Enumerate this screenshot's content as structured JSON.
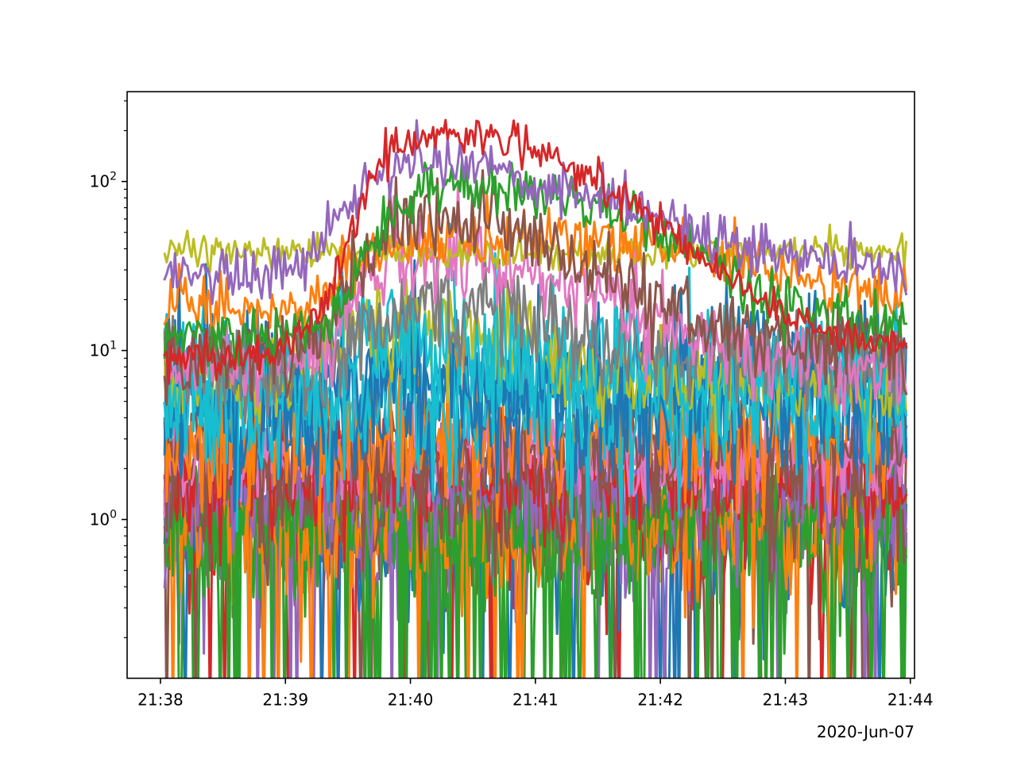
{
  "chart_data": {
    "type": "line",
    "title": "",
    "xlabel": "",
    "ylabel": "",
    "x_axis": {
      "kind": "time",
      "start": "21:38",
      "end": "21:44",
      "range": [
        "21:37:44",
        "21:44:02"
      ],
      "tick_labels": [
        "21:38",
        "21:39",
        "21:40",
        "21:41",
        "21:42",
        "21:43",
        "21:44"
      ],
      "offset_label": "2020-Jun-07"
    },
    "y_axis": {
      "scale": "log",
      "range": [
        0.115,
        340
      ],
      "tick_labels": [
        {
          "value": 1,
          "mantissa": "10",
          "exponent": "0"
        },
        {
          "value": 10,
          "mantissa": "10",
          "exponent": "1"
        },
        {
          "value": 100,
          "mantissa": "10",
          "exponent": "2"
        }
      ]
    },
    "grid": false,
    "legend": "none",
    "data_time_range": [
      "21:38:02",
      "21:43:58"
    ],
    "samples_per_series": 360,
    "series": [
      {
        "color": "#d62728",
        "profile": "bell",
        "base": 9,
        "peak": 225,
        "rise": "21:39:30",
        "fall": "21:42:10",
        "noise": 0.06
      },
      {
        "color": "#9467bd",
        "profile": "bell",
        "base": 28,
        "peak": 140,
        "rise": "21:39:25",
        "fall": "21:42:00",
        "noise": 0.08
      },
      {
        "color": "#2ca02c",
        "profile": "bell",
        "base": 12,
        "peak": 105,
        "rise": "21:39:40",
        "fall": "21:42:20",
        "noise": 0.08
      },
      {
        "color": "#8c564b",
        "profile": "bell",
        "base": 10,
        "peak": 85,
        "rise": "21:39:35",
        "fall": "21:41:30",
        "noise": 0.12
      },
      {
        "color": "#ff7f0e",
        "profile": "bell",
        "base": 18,
        "peak": 46,
        "rise": "21:39:30",
        "fall": "21:43:00",
        "noise": 0.09
      },
      {
        "color": "#bcbd22",
        "profile": "flat",
        "base": 38,
        "noise": 0.05
      },
      {
        "color": "#e377c2",
        "profile": "bell",
        "base": 8,
        "peak": 45,
        "rise": "21:39:30",
        "fall": "21:41:30",
        "noise": 0.12
      },
      {
        "color": "#7f7f7f",
        "profile": "bell",
        "base": 8,
        "peak": 24,
        "rise": "21:39:45",
        "fall": "21:41:15",
        "noise": 0.15
      },
      {
        "color": "#17becf",
        "profile": "bell",
        "base": 6,
        "peak": 14,
        "rise": "21:39:20",
        "fall": "21:41:00",
        "noise": 0.22
      },
      {
        "color": "#bcbd22",
        "profile": "bell",
        "base": 6,
        "peak": 20,
        "rise": "21:39:20",
        "fall": "21:40:40",
        "noise": 0.15
      },
      {
        "color": "#1f77b4",
        "profile": "flat",
        "base": 7,
        "noise": 0.25
      },
      {
        "color": "#17becf",
        "profile": "flat",
        "base": 5,
        "noise": 0.25
      },
      {
        "color": "#1f77b4",
        "profile": "flat",
        "base": 5,
        "noise": 0.25
      },
      {
        "color": "#ff7f0e",
        "profile": "flat",
        "base": 3.5,
        "noise": 0.25
      },
      {
        "color": "#8c564b",
        "profile": "flat",
        "base": 2.5,
        "noise": 0.18
      },
      {
        "color": "#e377c2",
        "profile": "flat",
        "base": 2.6,
        "noise": 0.12
      },
      {
        "color": "#e377c2",
        "profile": "flat",
        "base": 2.2,
        "noise": 0.12
      },
      {
        "color": "#d62728",
        "profile": "flat",
        "base": 1.8,
        "noise": 0.18
      },
      {
        "color": "#9467bd",
        "profile": "flat",
        "base": 1.6,
        "noise": 0.2
      },
      {
        "color": "#8c564b",
        "profile": "flat",
        "base": 1.5,
        "noise": 0.2
      },
      {
        "color": "#2ca02c",
        "profile": "flat",
        "base": 1.2,
        "noise": 0.22,
        "drops": 0.06
      },
      {
        "color": "#ff7f0e",
        "profile": "flat",
        "base": 1.0,
        "noise": 0.25,
        "drops": 0.05
      },
      {
        "color": "#2ca02c",
        "profile": "flat",
        "base": 0.9,
        "noise": 0.25,
        "drops": 0.12
      },
      {
        "color": "#9467bd",
        "profile": "flat",
        "base": 0.9,
        "noise": 0.25,
        "drops": 0.06
      },
      {
        "color": "#1f77b4",
        "profile": "flat",
        "base": 0.8,
        "noise": 0.25,
        "drops": 0.05
      },
      {
        "color": "#d62728",
        "profile": "flat",
        "base": 0.9,
        "noise": 0.22,
        "drops": 0.03
      },
      {
        "color": "#8c564b",
        "profile": "flat",
        "base": 0.9,
        "noise": 0.22,
        "drops": 0.05
      },
      {
        "color": "#bcbd22",
        "profile": "flat",
        "base": 1.0,
        "noise": 0.16
      }
    ]
  }
}
